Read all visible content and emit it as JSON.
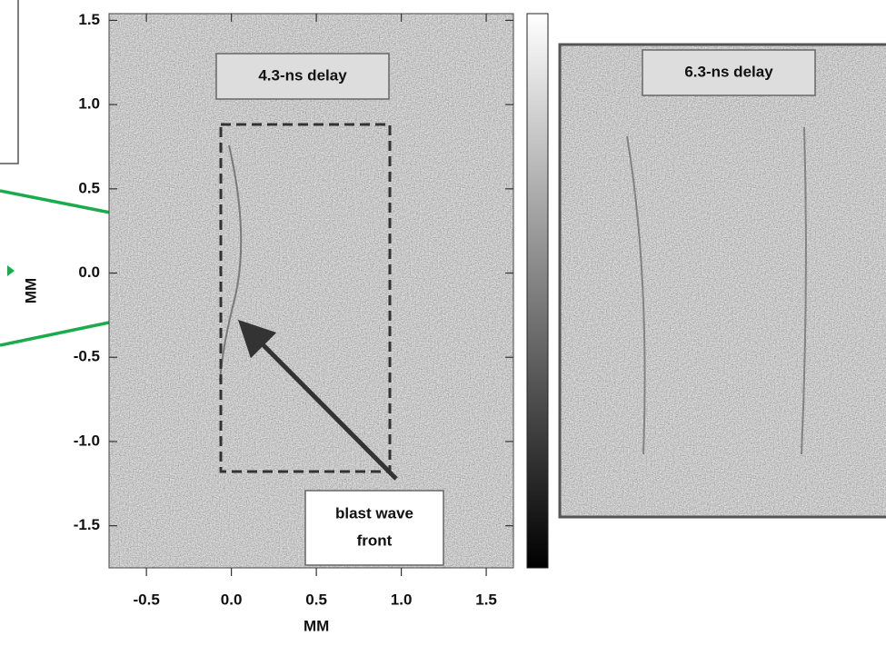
{
  "chart_data": {
    "type": "image",
    "xlabel": "MM",
    "ylabel": "MM",
    "xlim": [
      -0.72,
      1.66
    ],
    "ylim": [
      -1.75,
      1.54
    ],
    "xticks": [
      -0.5,
      {
        "value": 0,
        "label": "0.0"
      },
      0.5,
      {
        "value": 1,
        "label": "1.0"
      },
      1.5
    ],
    "yticks": [
      1.5,
      {
        "value": 1,
        "label": "1.0"
      },
      0.5,
      {
        "value": 0,
        "label": "0.0"
      },
      -0.5,
      {
        "value": -1,
        "label": "-1.0"
      },
      -1.5
    ],
    "panel_labels": [
      "4.3-ns delay",
      "6.3-ns delay"
    ],
    "annotation": [
      "blast wave",
      "front"
    ],
    "colormap": "gray"
  }
}
